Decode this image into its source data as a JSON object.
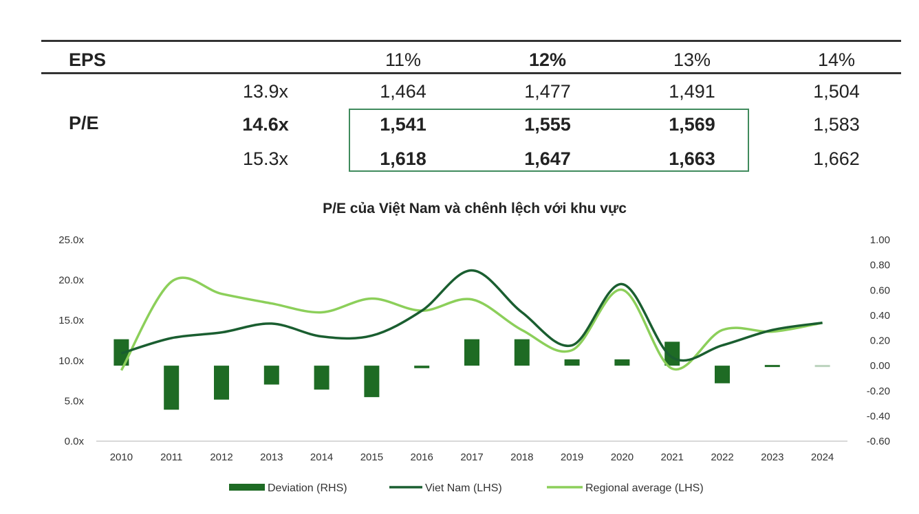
{
  "table": {
    "header_label": "EPS",
    "row_label": "P/E",
    "columns": [
      "11%",
      "12%",
      "13%",
      "14%"
    ],
    "bold_column": 1,
    "rows": [
      {
        "pe": "13.9x",
        "values": [
          "1,464",
          "1,477",
          "1,491",
          "1,504"
        ],
        "bold": false
      },
      {
        "pe": "14.6x",
        "values": [
          "1,541",
          "1,555",
          "1,569",
          "1,583"
        ],
        "bold": true
      },
      {
        "pe": "15.3x",
        "values": [
          "1,618",
          "1,647",
          "1,663",
          "1,662"
        ],
        "bold": false
      }
    ],
    "highlight_box_color": "#3f8a5c"
  },
  "chart_data": {
    "type": "bar+line",
    "title": "P/E của Việt Nam và chênh lệch với khu vực",
    "categories": [
      "2010",
      "2011",
      "2012",
      "2013",
      "2014",
      "2015",
      "2016",
      "2017",
      "2018",
      "2019",
      "2020",
      "2021",
      "2022",
      "2023",
      "2024"
    ],
    "left_axis": {
      "ticks": [
        "25.0x",
        "20.0x",
        "15.0x",
        "10.0x",
        "5.0x",
        "0.0x"
      ],
      "range": [
        0,
        25
      ]
    },
    "right_axis": {
      "ticks": [
        "1.00",
        "0.80",
        "0.60",
        "0.40",
        "0.20",
        "0.00",
        "-0.20",
        "-0.40",
        "-0.60"
      ],
      "range": [
        -0.6,
        1.0
      ]
    },
    "series": [
      {
        "name": "Deviation (RHS)",
        "type": "bar",
        "axis": "right",
        "color": "#1e6b24",
        "values": [
          0.21,
          -0.35,
          -0.27,
          -0.15,
          -0.19,
          -0.25,
          -0.02,
          0.21,
          0.21,
          0.05,
          0.05,
          0.19,
          -0.14,
          0.01,
          0.0
        ]
      },
      {
        "name": "Viet Nam (LHS)",
        "type": "line",
        "axis": "left",
        "color": "#1a5e30",
        "values": [
          10.9,
          12.8,
          13.5,
          14.6,
          13.0,
          13.1,
          16.2,
          21.2,
          16.0,
          11.9,
          19.5,
          10.4,
          11.9,
          13.8,
          14.7
        ]
      },
      {
        "name": "Regional average (LHS)",
        "type": "line",
        "axis": "left",
        "color": "#8ccf5a",
        "values": [
          8.8,
          19.8,
          18.3,
          17.1,
          16.0,
          17.7,
          16.2,
          17.6,
          13.8,
          11.3,
          18.8,
          9.0,
          13.8,
          13.6,
          14.7
        ]
      }
    ],
    "legend_position": "bottom"
  }
}
